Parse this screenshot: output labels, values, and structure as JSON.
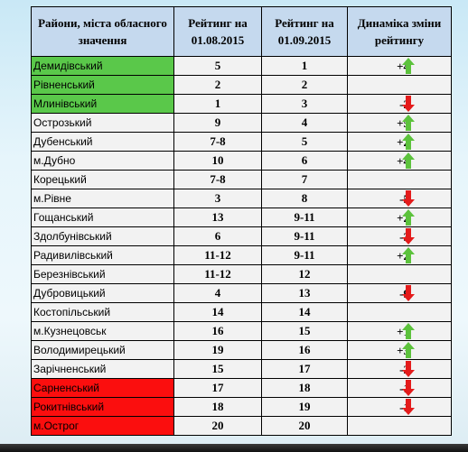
{
  "headers": {
    "district": "Райони, міста обласного значення",
    "rating_aug": "Рейтинг на 01.08.2015",
    "rating_sep": "Рейтинг на 01.09.2015",
    "dynamics": "Динаміка зміни рейтингу"
  },
  "colors": {
    "green_cell": "#5ac84a",
    "red_cell": "#fb0e0e",
    "arrow_up": "#5cc23c",
    "arrow_down": "#e41b1b",
    "header_bg": "#c5d9ee"
  },
  "rows": [
    {
      "name": "Демидівський",
      "aug": "5",
      "sep": "1",
      "dyn": "+4",
      "trend": "up",
      "highlight": "green"
    },
    {
      "name": "Рівненський",
      "aug": "2",
      "sep": "2",
      "dyn": "",
      "trend": "",
      "highlight": "green"
    },
    {
      "name": "Млинівський",
      "aug": "1",
      "sep": "3",
      "dyn": "-2",
      "trend": "down",
      "highlight": "green"
    },
    {
      "name": "Острозький",
      "aug": "9",
      "sep": "4",
      "dyn": "+5",
      "trend": "up",
      "highlight": ""
    },
    {
      "name": "Дубенський",
      "aug": "7-8",
      "sep": "5",
      "dyn": "+2",
      "trend": "up",
      "highlight": ""
    },
    {
      "name": "м.Дубно",
      "aug": "10",
      "sep": "6",
      "dyn": "+4",
      "trend": "up",
      "highlight": ""
    },
    {
      "name": "Корецький",
      "aug": "7-8",
      "sep": "7",
      "dyn": "",
      "trend": "",
      "highlight": ""
    },
    {
      "name": "м.Рівне",
      "aug": "3",
      "sep": "8",
      "dyn": "-5",
      "trend": "down",
      "highlight": ""
    },
    {
      "name": "Гощанський",
      "aug": "13",
      "sep": "9-11",
      "dyn": "+2",
      "trend": "up",
      "highlight": ""
    },
    {
      "name": "Здолбунівський",
      "aug": "6",
      "sep": "9-11",
      "dyn": "-3",
      "trend": "down",
      "highlight": ""
    },
    {
      "name": "Радивилівський",
      "aug": "11-12",
      "sep": "9-11",
      "dyn": "+2",
      "trend": "up",
      "highlight": ""
    },
    {
      "name": "Березнівський",
      "aug": "11-12",
      "sep": "12",
      "dyn": "",
      "trend": "",
      "highlight": ""
    },
    {
      "name": "Дубровицький",
      "aug": "4",
      "sep": "13",
      "dyn": "-9",
      "trend": "down",
      "highlight": ""
    },
    {
      "name": "Костопільський",
      "aug": "14",
      "sep": "14",
      "dyn": "",
      "trend": "",
      "highlight": ""
    },
    {
      "name": "м.Кузнецовськ",
      "aug": "16",
      "sep": "15",
      "dyn": "+1",
      "trend": "up",
      "highlight": ""
    },
    {
      "name": "Володимирецький",
      "aug": "19",
      "sep": "16",
      "dyn": "+3",
      "trend": "up",
      "highlight": ""
    },
    {
      "name": "Зарічненський",
      "aug": "15",
      "sep": "17",
      "dyn": "-2",
      "trend": "down",
      "highlight": ""
    },
    {
      "name": "Сарненський",
      "aug": "17",
      "sep": "18",
      "dyn": "-1",
      "trend": "down",
      "highlight": "red"
    },
    {
      "name": "Рокитнівський",
      "aug": "18",
      "sep": "19",
      "dyn": "-1",
      "trend": "down",
      "highlight": "red"
    },
    {
      "name": "м.Острог",
      "aug": "20",
      "sep": "20",
      "dyn": "",
      "trend": "",
      "highlight": "red"
    }
  ]
}
